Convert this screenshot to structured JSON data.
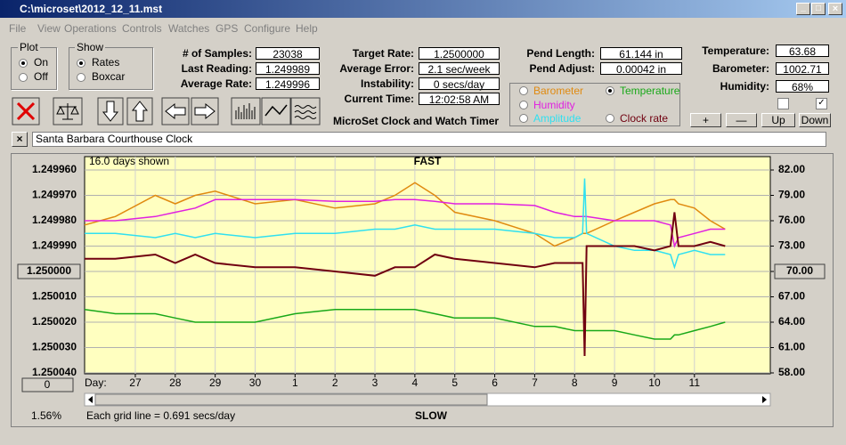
{
  "window": {
    "title": "C:\\microset\\2012_12_11.mst"
  },
  "menu": [
    "File",
    "View",
    "Operations",
    "Controls",
    "Watches",
    "GPS",
    "Configure",
    "Help"
  ],
  "plot_group": {
    "title": "Plot",
    "options": [
      "On",
      "Off"
    ]
  },
  "show_group": {
    "title": "Show",
    "options": [
      "Rates",
      "Boxcar"
    ]
  },
  "stats": [
    {
      "label": "# of Samples:",
      "value": "23038"
    },
    {
      "label": "Last Reading:",
      "value": "1.249989"
    },
    {
      "label": "Average Rate:",
      "value": "1.249996"
    }
  ],
  "rates": [
    {
      "label": "Target Rate:",
      "value": "1.2500000"
    },
    {
      "label": "Average Error:",
      "value": "2.1 sec/week"
    },
    {
      "label": "Instability:",
      "value": "0 secs/day"
    },
    {
      "label": "Current Time:",
      "value": "12:02:58 AM"
    }
  ],
  "pendulum": [
    {
      "label": "Pend Length:",
      "value": "61.144 in"
    },
    {
      "label": "Pend Adjust:",
      "value": "0.00042 in"
    }
  ],
  "sensors": [
    {
      "label": "Temperature:",
      "value": "63.68"
    },
    {
      "label": "Barometer:",
      "value": "1002.71"
    },
    {
      "label": "Humidity:",
      "value": "68%"
    }
  ],
  "caption": "MicroSet Clock and Watch Timer",
  "buttons": [
    "+",
    "—",
    "Up",
    "Down"
  ],
  "clock_name": "Santa Barbara Courthouse Clock",
  "chart_info": {
    "days_shown": "16.0 days shown",
    "top_label": "FAST",
    "bottom_label": "SLOW",
    "grid_note": "Each grid line = 0.691 secs/day",
    "day_label": "Day:",
    "percent": "1.56%",
    "offset_button": "0"
  },
  "chart_data": {
    "type": "line",
    "x": [
      -1.27,
      -0.5,
      0.5,
      1,
      1.5,
      2,
      3,
      4,
      5,
      6,
      6.5,
      7,
      7.5,
      8,
      9,
      10,
      10.5,
      11,
      11.2,
      11.25,
      11.3,
      12,
      12.5,
      13,
      13.4,
      13.5,
      13.6,
      14,
      14.4,
      14.77
    ],
    "xlim": [
      -1.27,
      15.9
    ],
    "xticks": [
      {
        "value": 0,
        "label": "27"
      },
      {
        "value": 1,
        "label": "28"
      },
      {
        "value": 2,
        "label": "29"
      },
      {
        "value": 3,
        "label": "30"
      },
      {
        "value": 4,
        "label": "1"
      },
      {
        "value": 5,
        "label": "2"
      },
      {
        "value": 6,
        "label": "3"
      },
      {
        "value": 7,
        "label": "4"
      },
      {
        "value": 8,
        "label": "5"
      },
      {
        "value": 9,
        "label": "6"
      },
      {
        "value": 10,
        "label": "7"
      },
      {
        "value": 11,
        "label": "8"
      },
      {
        "value": 12,
        "label": "9"
      },
      {
        "value": 13,
        "label": "10"
      },
      {
        "value": 14,
        "label": "11"
      }
    ],
    "ylim": [
      1.24996,
      1.25004
    ],
    "yticks": [
      {
        "value": 1.24996,
        "label": "1.249960"
      },
      {
        "value": 1.24997,
        "label": "1.249970"
      },
      {
        "value": 1.24998,
        "label": "1.249980"
      },
      {
        "value": 1.24999,
        "label": "1.249990"
      },
      {
        "value": 1.25,
        "label": "1.250000"
      },
      {
        "value": 1.25001,
        "label": "1.250010"
      },
      {
        "value": 1.25002,
        "label": "1.250020"
      },
      {
        "value": 1.25003,
        "label": "1.250030"
      },
      {
        "value": 1.25004,
        "label": "1.250040"
      }
    ],
    "y2lim": [
      58,
      82
    ],
    "y2ticks": [
      {
        "value": 82,
        "label": "82.00"
      },
      {
        "value": 79,
        "label": "79.00"
      },
      {
        "value": 76,
        "label": "76.00"
      },
      {
        "value": 73,
        "label": "73.00"
      },
      {
        "value": 70,
        "label": "70.00"
      },
      {
        "value": 67,
        "label": "67.00"
      },
      {
        "value": 64,
        "label": "64.00"
      },
      {
        "value": 61,
        "label": "61.00"
      },
      {
        "value": 58,
        "label": "58.00"
      }
    ],
    "grid": true,
    "series": [
      {
        "name": "Barometer",
        "color": "#e08a10",
        "axis": "y2",
        "selected": false,
        "values": [
          75.5,
          76.5,
          79,
          78,
          79,
          79.5,
          78,
          78.5,
          77.5,
          78,
          79,
          80.5,
          79,
          77,
          76,
          74.5,
          73,
          74,
          74.5,
          74.5,
          74.5,
          76,
          77,
          78,
          78.5,
          78.5,
          78,
          77.5,
          76,
          75
        ]
      },
      {
        "name": "Temperature",
        "color": "#18a818",
        "axis": "y2",
        "selected": true,
        "values": [
          65.5,
          65,
          65,
          64.5,
          64,
          64,
          64,
          65,
          65.5,
          65.5,
          65.5,
          65.5,
          65,
          64.5,
          64.5,
          63.5,
          63.5,
          63,
          63,
          63,
          63,
          63,
          62.5,
          62,
          62,
          62.5,
          62.5,
          63,
          63.5,
          64
        ]
      },
      {
        "name": "Humidity",
        "color": "#e020e0",
        "axis": "y2",
        "selected": false,
        "values": [
          76,
          76,
          76.5,
          77,
          77.5,
          78.5,
          78.5,
          78.5,
          78.3,
          78.3,
          78.5,
          78.5,
          78.3,
          78,
          78,
          77.8,
          77,
          76.5,
          76.5,
          76.5,
          76.5,
          76,
          76,
          76,
          75.5,
          73,
          74,
          74.5,
          75,
          75
        ]
      },
      {
        "name": "Amplitude",
        "color": "#30e0f0",
        "axis": "y2",
        "selected": false,
        "values": [
          74.5,
          74.5,
          74,
          74.5,
          74,
          74.5,
          74,
          74.5,
          74.5,
          75,
          75,
          75.5,
          75,
          75,
          75,
          74.5,
          74,
          74,
          74.5,
          81,
          74.5,
          73,
          72.5,
          72.5,
          72,
          70.5,
          72,
          72.5,
          72,
          72
        ]
      },
      {
        "name": "Clock rate",
        "color": "#700010",
        "axis": "y2",
        "selected": false,
        "values": [
          71.5,
          71.5,
          72,
          71,
          72,
          71,
          70.5,
          70.5,
          70,
          69.5,
          70.5,
          70.5,
          72,
          71.5,
          71,
          70.5,
          71,
          71,
          71,
          60,
          73,
          73,
          73,
          72.5,
          73,
          77,
          73,
          73,
          73.5,
          73
        ]
      }
    ]
  }
}
